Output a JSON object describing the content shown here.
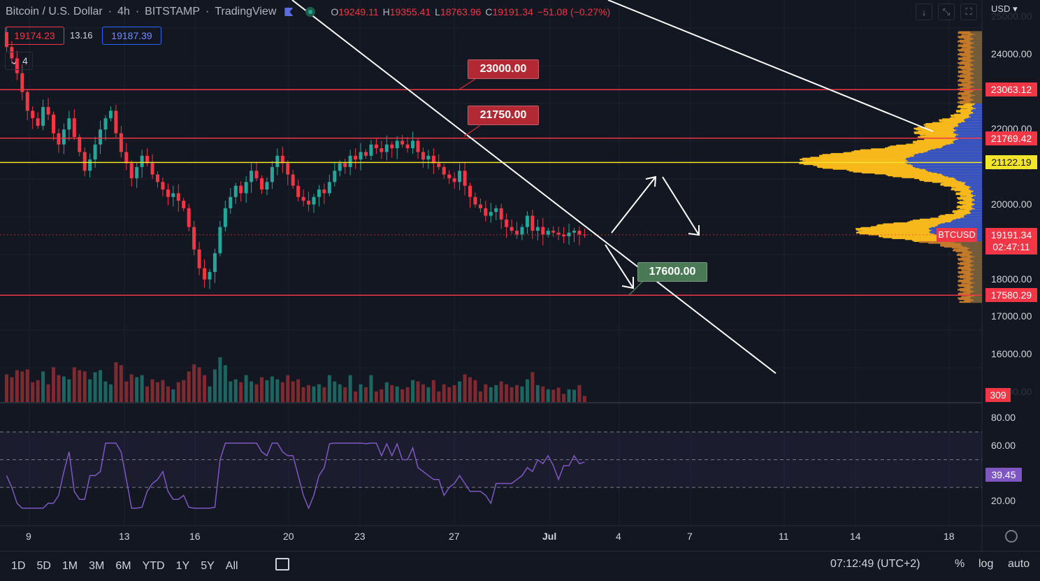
{
  "header": {
    "symbol": "Bitcoin / U.S. Dollar",
    "sep1": "·",
    "interval": "4h",
    "sep2": "·",
    "exchange": "BITSTAMP",
    "sep3": "·",
    "brand": "TradingView",
    "open_lbl": "O",
    "open": "19249.11",
    "high_lbl": "H",
    "high": "19355.41",
    "low_lbl": "L",
    "low": "18763.96",
    "close_lbl": "C",
    "close": "19191.34",
    "change": "−51.08 (−0.27%)"
  },
  "trade": {
    "sell": "19174.23",
    "spread": "13.16",
    "buy": "19187.39",
    "indicators_count": "4"
  },
  "currency": "USD",
  "price_axis": [
    "24000.00",
    "22000.00",
    "20000.00",
    "18000.00",
    "17000.00",
    "16000.00"
  ],
  "price_axis_partial": [
    "25000.00",
    "21000.00",
    "15000.00"
  ],
  "level_tags": [
    {
      "price": 23063.12,
      "label": "23063.12",
      "color": "#f23645"
    },
    {
      "price": 21769.42,
      "label": "21769.42",
      "color": "#f23645"
    },
    {
      "price": 21122.19,
      "label": "21122.19",
      "color": "#f5e52a"
    },
    {
      "price": 17580.29,
      "label": "17580.29",
      "color": "#f23645"
    }
  ],
  "last_price": {
    "symbol": "BTCUSD",
    "value": "19191.34",
    "countdown": "02:47:11"
  },
  "volume_last": "309",
  "callouts": [
    {
      "label": "23000.00",
      "color": "#b22833"
    },
    {
      "label": "21750.00",
      "color": "#b22833"
    },
    {
      "label": "17600.00",
      "color": "#4a7a55"
    }
  ],
  "rsi": {
    "axis": [
      "80.00",
      "60.00",
      "20.00"
    ],
    "value": "39.45"
  },
  "time_axis": [
    "9",
    "13",
    "16",
    "20",
    "23",
    "27",
    "Jul",
    "4",
    "7",
    "11",
    "14",
    "18"
  ],
  "ranges": [
    "1D",
    "5D",
    "1M",
    "3M",
    "6M",
    "YTD",
    "1Y",
    "5Y",
    "All"
  ],
  "clock": "07:12:49 (UTC+2)",
  "bottom_opts": {
    "pct": "%",
    "log": "log",
    "auto": "auto"
  },
  "colors": {
    "up": "#26a69a",
    "down": "#f23645",
    "bg": "#131722",
    "support": "#f23645",
    "poc": "#f5e52a"
  },
  "chart_data": {
    "type": "candlestick",
    "interval": "4h",
    "ylim": [
      16000,
      24500
    ],
    "levels": [
      23063.12,
      21769.42,
      21122.19,
      17580.29
    ],
    "last_price": 19191.34,
    "closes": [
      24600,
      24200,
      23900,
      23500,
      23000,
      22500,
      22300,
      22100,
      22600,
      22400,
      21900,
      21600,
      22000,
      22300,
      21800,
      21400,
      20900,
      21200,
      21600,
      22000,
      22300,
      22500,
      21900,
      21400,
      21100,
      20700,
      21000,
      21300,
      21100,
      20800,
      20600,
      20400,
      20200,
      20300,
      20100,
      19900,
      19400,
      18800,
      18300,
      18000,
      18200,
      18700,
      19400,
      19900,
      20200,
      20500,
      20300,
      20600,
      20900,
      20700,
      20400,
      20600,
      21000,
      21300,
      21100,
      20800,
      20500,
      20200,
      20100,
      20000,
      20200,
      20400,
      20300,
      20600,
      20900,
      21100,
      21000,
      21300,
      21200,
      21400,
      21300,
      21600,
      21500,
      21400,
      21600,
      21500,
      21700,
      21600,
      21500,
      21700,
      21400,
      21200,
      21300,
      21100,
      21000,
      20800,
      20700,
      20600,
      20900,
      20500,
      20200,
      20000,
      19900,
      19700,
      19800,
      19900,
      19600,
      19400,
      19300,
      19200,
      19400,
      19700,
      19300,
      19400,
      19200,
      19300,
      19250,
      19200,
      19150,
      19250,
      19300,
      19200,
      19191
    ]
  }
}
